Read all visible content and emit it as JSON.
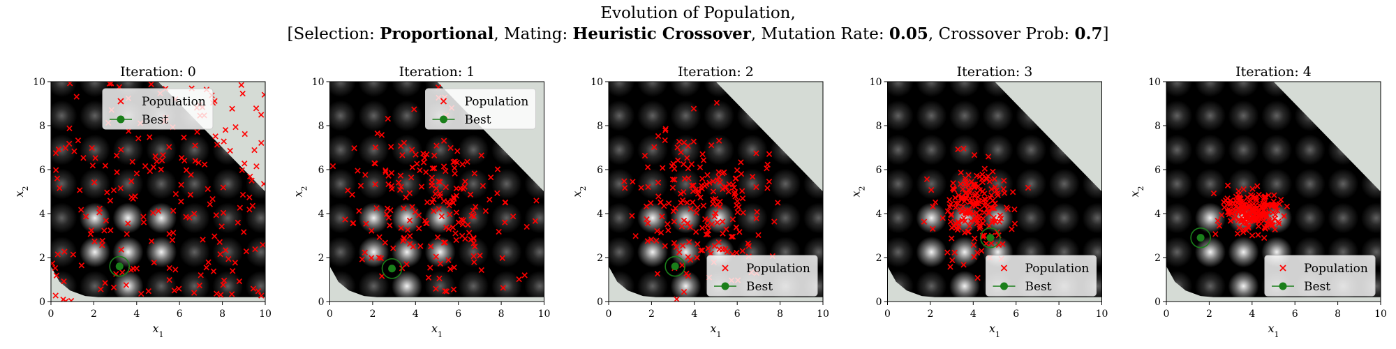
{
  "figure": {
    "title_line1": "Evolution of Population,",
    "title_line2": {
      "selection_label": "[Selection: ",
      "selection_value": "Proportional",
      "mating_label": ", Mating: ",
      "mating_value": "Heuristic Crossover",
      "mutation_label": ", Mutation Rate: ",
      "mutation_value": "0.05",
      "crossover_label": ", Crossover Prob: ",
      "crossover_value": "0.7",
      "close": "]"
    }
  },
  "colors": {
    "population": "#ff0000",
    "best": "#1a7f1a",
    "infeasible": "#d5dbd5",
    "background": "#000000"
  },
  "chart_data": [
    {
      "type": "scatter",
      "title": "Iteration: 0",
      "xlabel": "x1",
      "ylabel": "x2",
      "xlim": [
        0,
        10
      ],
      "ylim": [
        0,
        10
      ],
      "ticks": [
        0,
        2,
        4,
        6,
        8,
        10
      ],
      "legend": {
        "position": "top-center",
        "items": [
          "Population",
          "Best"
        ]
      },
      "best": [
        3.2,
        1.6
      ],
      "population_count": 200,
      "population_center": [
        5,
        5
      ],
      "population_spread": [
        4.2,
        4.2
      ],
      "seed": 11
    },
    {
      "type": "scatter",
      "title": "Iteration: 1",
      "xlabel": "x1",
      "ylabel": "x2",
      "xlim": [
        0,
        10
      ],
      "ylim": [
        0,
        10
      ],
      "ticks": [
        0,
        2,
        4,
        6,
        8,
        10
      ],
      "legend": {
        "position": "top-right",
        "items": [
          "Population",
          "Best"
        ]
      },
      "best": [
        2.9,
        1.5
      ],
      "population_count": 200,
      "population_center": [
        4.6,
        4.2
      ],
      "population_spread": [
        2.4,
        2.1
      ],
      "seed": 23
    },
    {
      "type": "scatter",
      "title": "Iteration: 2",
      "xlabel": "x1",
      "ylabel": "x2",
      "xlim": [
        0,
        10
      ],
      "ylim": [
        0,
        10
      ],
      "ticks": [
        0,
        2,
        4,
        6,
        8,
        10
      ],
      "legend": {
        "position": "bottom-right",
        "items": [
          "Population",
          "Best"
        ]
      },
      "best": [
        3.1,
        1.6
      ],
      "population_count": 200,
      "population_center": [
        4.3,
        4.4
      ],
      "population_spread": [
        1.5,
        1.8
      ],
      "seed": 37
    },
    {
      "type": "scatter",
      "title": "Iteration: 3",
      "xlabel": "x1",
      "ylabel": "x2",
      "xlim": [
        0,
        10
      ],
      "ylim": [
        0,
        10
      ],
      "ticks": [
        0,
        2,
        4,
        6,
        8,
        10
      ],
      "legend": {
        "position": "bottom-right",
        "items": [
          "Population",
          "Best"
        ]
      },
      "best": [
        4.8,
        2.9
      ],
      "population_count": 200,
      "population_center": [
        4.1,
        4.2
      ],
      "population_spread": [
        0.9,
        1.1
      ],
      "seed": 53
    },
    {
      "type": "scatter",
      "title": "Iteration: 4",
      "xlabel": "x1",
      "ylabel": "x2",
      "xlim": [
        0,
        10
      ],
      "ylim": [
        0,
        10
      ],
      "ticks": [
        0,
        2,
        4,
        6,
        8,
        10
      ],
      "legend": {
        "position": "bottom-right",
        "items": [
          "Population",
          "Best"
        ]
      },
      "best": [
        1.6,
        2.9
      ],
      "population_count": 200,
      "population_center": [
        4.0,
        4.1
      ],
      "population_spread": [
        0.8,
        0.5
      ],
      "seed": 71
    }
  ]
}
